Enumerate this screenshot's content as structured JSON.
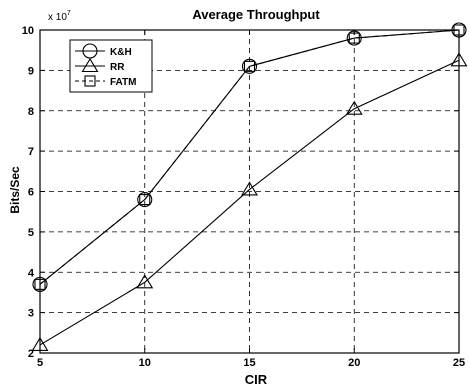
{
  "chart_data": {
    "type": "line",
    "title": "Average Throughput",
    "xlabel": "CIR",
    "ylabel": "Bits/Sec",
    "y_exponent_label": "x 10",
    "y_exponent_power": "7",
    "x": [
      5,
      10,
      15,
      20,
      25
    ],
    "xlim": [
      5,
      25
    ],
    "ylim": [
      2,
      10
    ],
    "x_ticks": [
      "5",
      "10",
      "15",
      "20",
      "25"
    ],
    "y_ticks": [
      "2",
      "3",
      "4",
      "5",
      "6",
      "7",
      "8",
      "9",
      "10"
    ],
    "grid": true,
    "legend_position": "top-left",
    "series": [
      {
        "name": "K&H",
        "marker": "circle",
        "line": "solid",
        "values": [
          3.7,
          5.8,
          9.1,
          9.8,
          10.0
        ]
      },
      {
        "name": "RR",
        "marker": "triangle",
        "line": "solid",
        "values": [
          2.2,
          3.75,
          6.05,
          8.05,
          9.25
        ]
      },
      {
        "name": "FATM",
        "marker": "square",
        "line": "dashed",
        "values": [
          3.7,
          5.8,
          9.1,
          9.8,
          10.0
        ]
      }
    ]
  }
}
